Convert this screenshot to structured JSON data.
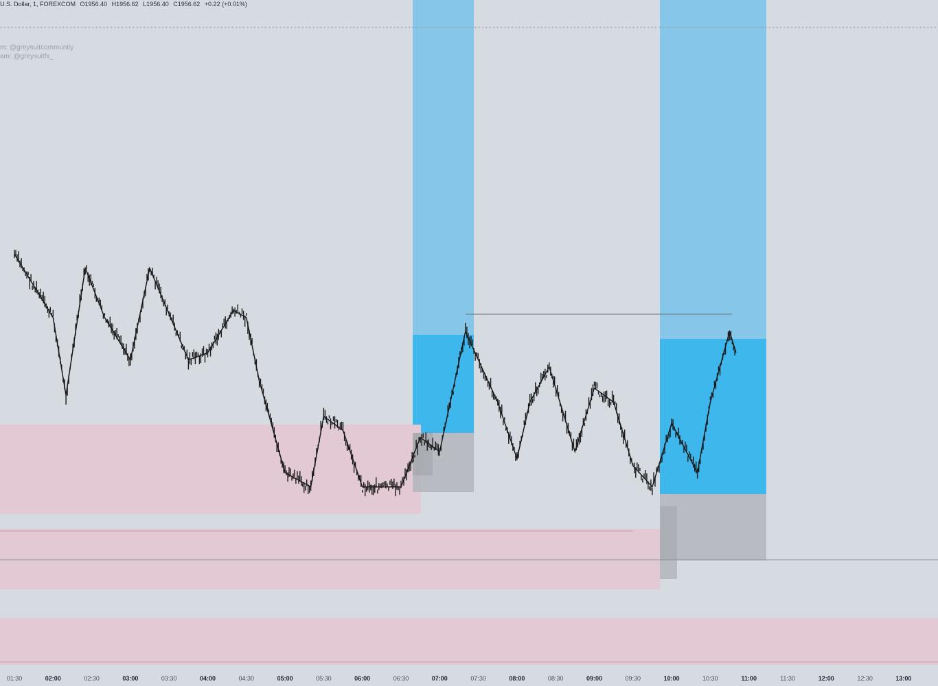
{
  "header": {
    "symbol": "U.S. Dollar, 1, FOREXCOM",
    "open": "O1956.40",
    "high": "H1956.62",
    "low": "L1956.40",
    "close": "C1956.62",
    "change": "+0.22 (+0.01%)"
  },
  "watermark": {
    "line1": "m: @greysuitcommunity",
    "line2": "am: @greysuitfx_"
  },
  "colors": {
    "background": "#d6dbe2",
    "light_blue_zone": "#86c6e8",
    "blue_zone": "#3eb8ec",
    "pink_zone": "#e3c9d3",
    "grey_box": "#b3b5bb",
    "candle": "#1a1a1a"
  },
  "chart_data": {
    "type": "line",
    "title": "",
    "xlabel": "",
    "ylabel": "",
    "x_tick_labels": [
      "01:30",
      "02:00",
      "02:30",
      "03:00",
      "03:30",
      "04:00",
      "04:30",
      "05:00",
      "05:30",
      "06:00",
      "06:30",
      "07:00",
      "07:30",
      "08:00",
      "08:30",
      "09:00",
      "09:30",
      "10:00",
      "10:30",
      "11:00",
      "11:30",
      "12:00",
      "12:30",
      "13:00"
    ],
    "x_major_ticks": [
      "02:00",
      "03:00",
      "04:00",
      "05:00",
      "06:00",
      "07:00",
      "08:00",
      "09:00",
      "10:00",
      "11:00",
      "12:00",
      "13:00"
    ],
    "price_path_approx": [
      {
        "t": "01:30",
        "v": 0.64
      },
      {
        "t": "02:00",
        "v": 0.55
      },
      {
        "t": "02:10",
        "v": 0.44
      },
      {
        "t": "02:25",
        "v": 0.62
      },
      {
        "t": "02:40",
        "v": 0.55
      },
      {
        "t": "03:00",
        "v": 0.49
      },
      {
        "t": "03:15",
        "v": 0.62
      },
      {
        "t": "03:45",
        "v": 0.49
      },
      {
        "t": "04:00",
        "v": 0.5
      },
      {
        "t": "04:20",
        "v": 0.56
      },
      {
        "t": "04:30",
        "v": 0.55
      },
      {
        "t": "04:40",
        "v": 0.46
      },
      {
        "t": "05:00",
        "v": 0.33
      },
      {
        "t": "05:20",
        "v": 0.31
      },
      {
        "t": "05:30",
        "v": 0.41
      },
      {
        "t": "05:45",
        "v": 0.39
      },
      {
        "t": "06:00",
        "v": 0.31
      },
      {
        "t": "06:30",
        "v": 0.31
      },
      {
        "t": "06:45",
        "v": 0.38
      },
      {
        "t": "07:00",
        "v": 0.36
      },
      {
        "t": "07:20",
        "v": 0.53
      },
      {
        "t": "07:45",
        "v": 0.43
      },
      {
        "t": "08:00",
        "v": 0.35
      },
      {
        "t": "08:10",
        "v": 0.43
      },
      {
        "t": "08:25",
        "v": 0.48
      },
      {
        "t": "08:45",
        "v": 0.36
      },
      {
        "t": "09:00",
        "v": 0.45
      },
      {
        "t": "09:15",
        "v": 0.43
      },
      {
        "t": "09:30",
        "v": 0.34
      },
      {
        "t": "09:45",
        "v": 0.31
      },
      {
        "t": "10:00",
        "v": 0.4
      },
      {
        "t": "10:20",
        "v": 0.33
      },
      {
        "t": "10:30",
        "v": 0.43
      },
      {
        "t": "10:45",
        "v": 0.53
      },
      {
        "t": "10:50",
        "v": 0.5
      }
    ],
    "zones": [
      {
        "kind": "session",
        "from": "06:50",
        "to": "07:20"
      },
      {
        "kind": "session",
        "from": "09:45",
        "to": "10:55"
      },
      {
        "kind": "demand",
        "from": "01:30",
        "to": "06:50"
      },
      {
        "kind": "demand",
        "from": "01:30",
        "to": "09:45"
      },
      {
        "kind": "demand",
        "from": "01:30",
        "to": "13:00"
      }
    ],
    "grid": false,
    "legend": "none"
  }
}
